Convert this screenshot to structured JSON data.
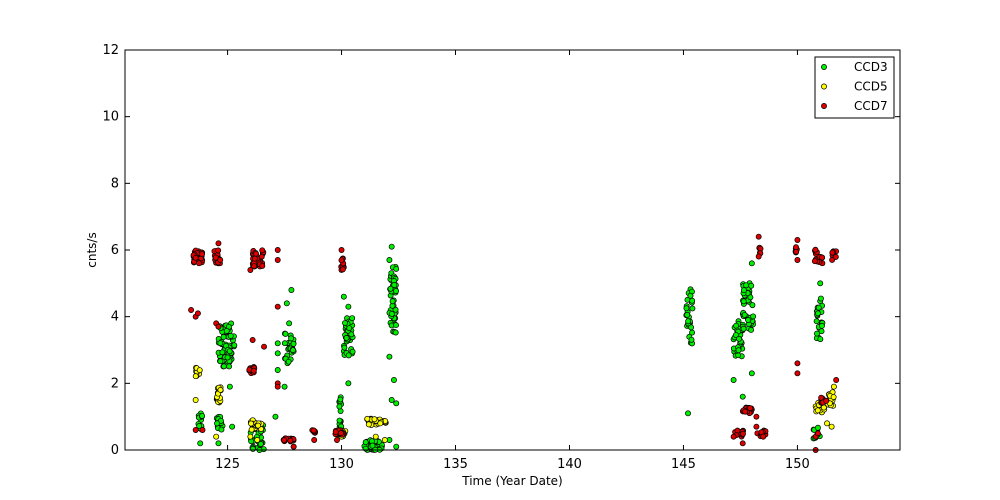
{
  "chart_data": {
    "type": "scatter",
    "title": "",
    "xlabel": "Time (Year Date)",
    "ylabel": "cnts/s",
    "xlim": [
      120.5,
      154.5
    ],
    "ylim": [
      0,
      12
    ],
    "xticks": [
      125,
      130,
      135,
      140,
      145,
      150
    ],
    "yticks": [
      0,
      2,
      4,
      6,
      8,
      10,
      12
    ],
    "grid": false,
    "legend_position": "top-right",
    "series": [
      {
        "name": "CCD3",
        "color": "#00ee00",
        "clusters": [
          {
            "x": [
              123.7,
              123.9
            ],
            "y": [
              0.5,
              1.1
            ],
            "n": 14
          },
          {
            "x": [
              124.6,
              125.3
            ],
            "y": [
              2.5,
              3.8
            ],
            "n": 70
          },
          {
            "x": [
              124.5,
              124.8
            ],
            "y": [
              0.6,
              1.0
            ],
            "n": 14
          },
          {
            "x": [
              126.0,
              126.6
            ],
            "y": [
              0.0,
              0.8
            ],
            "n": 40
          },
          {
            "x": [
              127.5,
              127.9
            ],
            "y": [
              2.6,
              3.5
            ],
            "n": 34
          },
          {
            "x": [
              129.9,
              130.0
            ],
            "y": [
              0.6,
              1.6
            ],
            "n": 16
          },
          {
            "x": [
              130.1,
              130.5
            ],
            "y": [
              2.8,
              4.0
            ],
            "n": 36
          },
          {
            "x": [
              131.0,
              131.8
            ],
            "y": [
              0.0,
              0.3
            ],
            "n": 34
          },
          {
            "x": [
              132.1,
              132.4
            ],
            "y": [
              3.5,
              5.5
            ],
            "n": 46
          },
          {
            "x": [
              145.1,
              145.4
            ],
            "y": [
              3.1,
              4.9
            ],
            "n": 26
          },
          {
            "x": [
              147.2,
              147.6
            ],
            "y": [
              2.8,
              3.9
            ],
            "n": 34
          },
          {
            "x": [
              147.6,
              148.1
            ],
            "y": [
              3.6,
              5.1
            ],
            "n": 40
          },
          {
            "x": [
              150.8,
              151.1
            ],
            "y": [
              3.3,
              4.6
            ],
            "n": 24
          },
          {
            "x": [
              150.7,
              151.0
            ],
            "y": [
              0.3,
              0.7
            ],
            "n": 10
          }
        ],
        "points": [
          [
            123.8,
            0.2
          ],
          [
            124.6,
            0.2
          ],
          [
            125.1,
            1.9
          ],
          [
            125.2,
            0.7
          ],
          [
            126.4,
            0.0
          ],
          [
            127.2,
            3.2
          ],
          [
            127.2,
            2.9
          ],
          [
            127.6,
            4.4
          ],
          [
            127.8,
            4.8
          ],
          [
            127.7,
            3.8
          ],
          [
            127.1,
            1.0
          ],
          [
            127.5,
            1.9
          ],
          [
            127.2,
            2.4
          ],
          [
            127.9,
            0.1
          ],
          [
            130.1,
            4.6
          ],
          [
            130.3,
            2.0
          ],
          [
            130.3,
            4.3
          ],
          [
            132.2,
            6.1
          ],
          [
            132.1,
            2.8
          ],
          [
            132.3,
            2.1
          ],
          [
            132.4,
            1.4
          ],
          [
            132.1,
            0.3
          ],
          [
            132.4,
            0.1
          ],
          [
            132.2,
            1.5
          ],
          [
            132.1,
            5.7
          ],
          [
            145.2,
            1.1
          ],
          [
            147.2,
            2.1
          ],
          [
            147.6,
            1.6
          ],
          [
            148.0,
            2.3
          ],
          [
            148.0,
            5.6
          ],
          [
            151.0,
            5.0
          ],
          [
            150.9,
            4.1
          ]
        ]
      },
      {
        "name": "CCD5",
        "color": "#ffff00",
        "clusters": [
          {
            "x": [
              123.6,
              123.8
            ],
            "y": [
              2.2,
              2.5
            ],
            "n": 10
          },
          {
            "x": [
              124.4,
              124.7
            ],
            "y": [
              1.4,
              1.9
            ],
            "n": 16
          },
          {
            "x": [
              126.0,
              126.5
            ],
            "y": [
              0.6,
              0.9
            ],
            "n": 18
          },
          {
            "x": [
              129.8,
              130.2
            ],
            "y": [
              0.4,
              0.6
            ],
            "n": 14
          },
          {
            "x": [
              131.1,
              132.0
            ],
            "y": [
              0.75,
              0.95
            ],
            "n": 28
          },
          {
            "x": [
              150.8,
              151.2
            ],
            "y": [
              1.1,
              1.5
            ],
            "n": 16
          },
          {
            "x": [
              151.3,
              151.6
            ],
            "y": [
              1.3,
              1.8
            ],
            "n": 14
          }
        ],
        "points": [
          [
            123.6,
            1.5
          ],
          [
            124.5,
            0.4
          ],
          [
            126.0,
            0.4
          ],
          [
            126.3,
            0.3
          ],
          [
            130.0,
            0.4
          ],
          [
            131.9,
            0.3
          ],
          [
            131.5,
            0.4
          ],
          [
            151.3,
            0.8
          ],
          [
            151.5,
            0.7
          ],
          [
            151.6,
            1.9
          ]
        ]
      },
      {
        "name": "CCD7",
        "color": "#dd0000",
        "clusters": [
          {
            "x": [
              123.5,
              123.9
            ],
            "y": [
              5.6,
              6.0
            ],
            "n": 30
          },
          {
            "x": [
              124.4,
              124.7
            ],
            "y": [
              5.6,
              6.0
            ],
            "n": 18
          },
          {
            "x": [
              125.9,
              126.2
            ],
            "y": [
              2.3,
              2.5
            ],
            "n": 14
          },
          {
            "x": [
              126.1,
              126.6
            ],
            "y": [
              5.5,
              6.0
            ],
            "n": 30
          },
          {
            "x": [
              127.4,
              127.9
            ],
            "y": [
              0.25,
              0.35
            ],
            "n": 14
          },
          {
            "x": [
              128.7,
              128.9
            ],
            "y": [
              0.5,
              0.65
            ],
            "n": 6
          },
          {
            "x": [
              129.7,
              130.1
            ],
            "y": [
              0.45,
              0.6
            ],
            "n": 14
          },
          {
            "x": [
              129.9,
              130.1
            ],
            "y": [
              5.4,
              5.9
            ],
            "n": 10
          },
          {
            "x": [
              147.2,
              147.7
            ],
            "y": [
              0.4,
              0.6
            ],
            "n": 14
          },
          {
            "x": [
              147.6,
              148.0
            ],
            "y": [
              1.1,
              1.3
            ],
            "n": 14
          },
          {
            "x": [
              148.2,
              148.6
            ],
            "y": [
              0.4,
              0.6
            ],
            "n": 12
          },
          {
            "x": [
              148.3,
              148.4
            ],
            "y": [
              5.8,
              6.1
            ],
            "n": 6
          },
          {
            "x": [
              149.9,
              150.0
            ],
            "y": [
              5.9,
              6.1
            ],
            "n": 6
          },
          {
            "x": [
              150.7,
              151.1
            ],
            "y": [
              5.6,
              6.1
            ],
            "n": 16
          },
          {
            "x": [
              151.5,
              151.7
            ],
            "y": [
              5.7,
              6.0
            ],
            "n": 8
          },
          {
            "x": [
              151.0,
              151.3
            ],
            "y": [
              1.4,
              1.6
            ],
            "n": 8
          }
        ],
        "points": [
          [
            123.4,
            4.2
          ],
          [
            123.6,
            4.0
          ],
          [
            123.7,
            4.1
          ],
          [
            123.6,
            0.6
          ],
          [
            123.9,
            0.6
          ],
          [
            124.5,
            3.8
          ],
          [
            124.6,
            3.7
          ],
          [
            124.6,
            6.2
          ],
          [
            126.1,
            3.3
          ],
          [
            126.6,
            3.1
          ],
          [
            126.0,
            5.4
          ],
          [
            126.5,
            5.8
          ],
          [
            127.2,
            6.0
          ],
          [
            127.2,
            5.7
          ],
          [
            127.2,
            4.3
          ],
          [
            127.2,
            2.0
          ],
          [
            127.2,
            1.9
          ],
          [
            127.9,
            0.1
          ],
          [
            128.8,
            0.3
          ],
          [
            129.8,
            0.3
          ],
          [
            130.0,
            6.0
          ],
          [
            147.2,
            0.4
          ],
          [
            147.6,
            0.2
          ],
          [
            148.2,
            1.0
          ],
          [
            148.3,
            6.4
          ],
          [
            148.2,
            0.7
          ],
          [
            148.5,
            0.4
          ],
          [
            150.0,
            6.3
          ],
          [
            150.0,
            2.6
          ],
          [
            150.0,
            2.3
          ],
          [
            150.0,
            5.7
          ],
          [
            150.8,
            0.0
          ],
          [
            150.8,
            0.4
          ],
          [
            150.9,
            0.5
          ],
          [
            151.7,
            2.1
          ]
        ]
      }
    ]
  }
}
